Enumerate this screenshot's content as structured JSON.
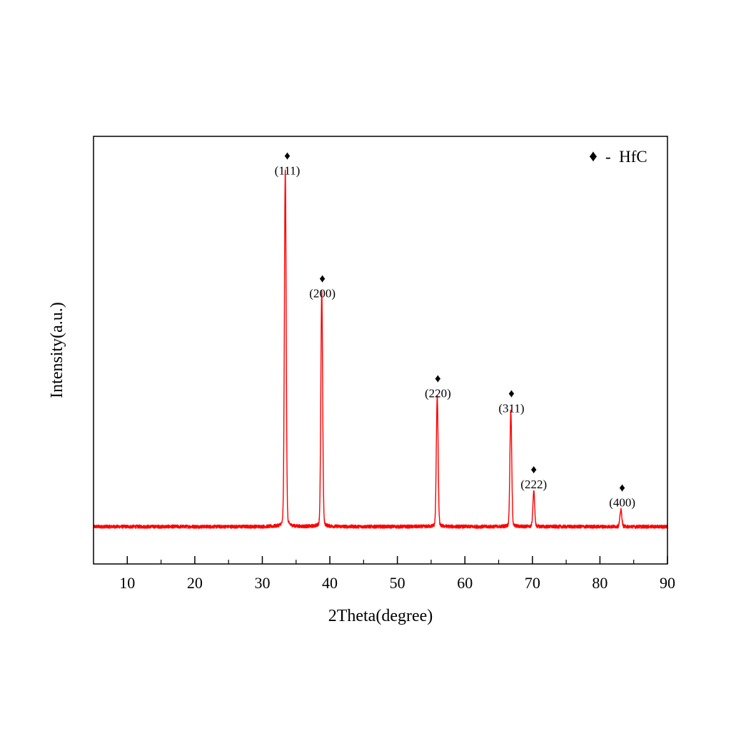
{
  "chart_data": {
    "type": "line",
    "title": "",
    "xlabel": "2Theta(degree)",
    "ylabel": "Intensity(a.u.)",
    "xlim": [
      5,
      90
    ],
    "ylim": [
      -5.5,
      57.5
    ],
    "x_ticks": [
      10,
      20,
      30,
      40,
      50,
      60,
      70,
      80,
      90
    ],
    "show_y_ticks": false,
    "grid": false,
    "line_color": "#ff0000",
    "baseline": 0,
    "noise_amplitude": 0.25,
    "series": [
      {
        "name": "HfC",
        "peaks": [
          {
            "x": 33.4,
            "height": 50.8,
            "width": 0.13
          },
          {
            "x": 38.8,
            "height": 33.5,
            "width": 0.13
          },
          {
            "x": 55.9,
            "height": 18.7,
            "width": 0.13
          },
          {
            "x": 66.8,
            "height": 16.6,
            "width": 0.13
          },
          {
            "x": 70.2,
            "height": 5.0,
            "width": 0.13
          },
          {
            "x": 83.1,
            "height": 2.4,
            "width": 0.14
          }
        ]
      }
    ],
    "annotations": [
      {
        "x": 33.7,
        "marker_y": 54.7,
        "label": "(111)"
      },
      {
        "x": 38.9,
        "marker_y": 36.6,
        "label": "(200)"
      },
      {
        "x": 56.0,
        "marker_y": 21.9,
        "label": "(220)"
      },
      {
        "x": 66.9,
        "marker_y": 19.7,
        "label": "(311)"
      },
      {
        "x": 70.2,
        "marker_y": 8.5,
        "label": "(222)"
      },
      {
        "x": 83.3,
        "marker_y": 5.8,
        "label": "(400)"
      }
    ],
    "legend": {
      "position": "top-right",
      "marker": "♦",
      "text": "-  HfC"
    }
  }
}
